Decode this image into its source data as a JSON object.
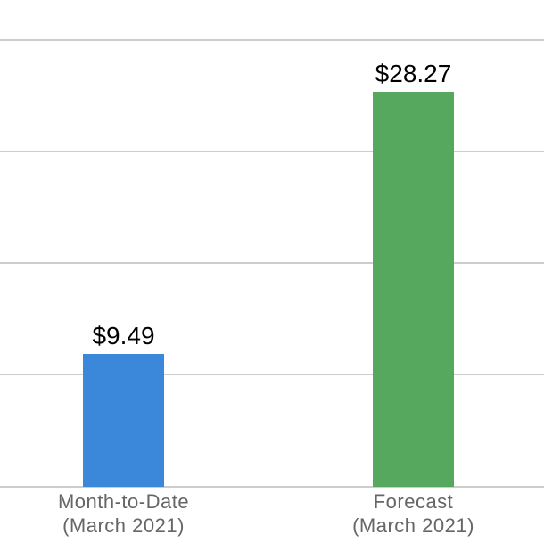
{
  "chart_data": {
    "type": "bar",
    "title": "",
    "categories": [
      "Month-to-Date (March 2021)",
      "Forecast (March 2021)"
    ],
    "category_lines": [
      [
        "Month-to-Date",
        "(March 2021)"
      ],
      [
        "Forecast",
        "(March 2021)"
      ]
    ],
    "values": [
      9.49,
      28.27
    ],
    "value_labels": [
      "$9.49",
      "$28.27"
    ],
    "bar_colors": [
      "#3B87D9",
      "#57A85F"
    ],
    "ylim": [
      0,
      32
    ],
    "gridline_values": [
      0,
      8,
      16,
      24,
      32
    ],
    "grid": true,
    "legend_position": "none",
    "xlabel": "",
    "ylabel": ""
  },
  "styles": {
    "background": "#FFFFFF",
    "grid_color": "#CDCDCD",
    "axis_label_color": "#666666",
    "value_label_color": "#000000"
  }
}
